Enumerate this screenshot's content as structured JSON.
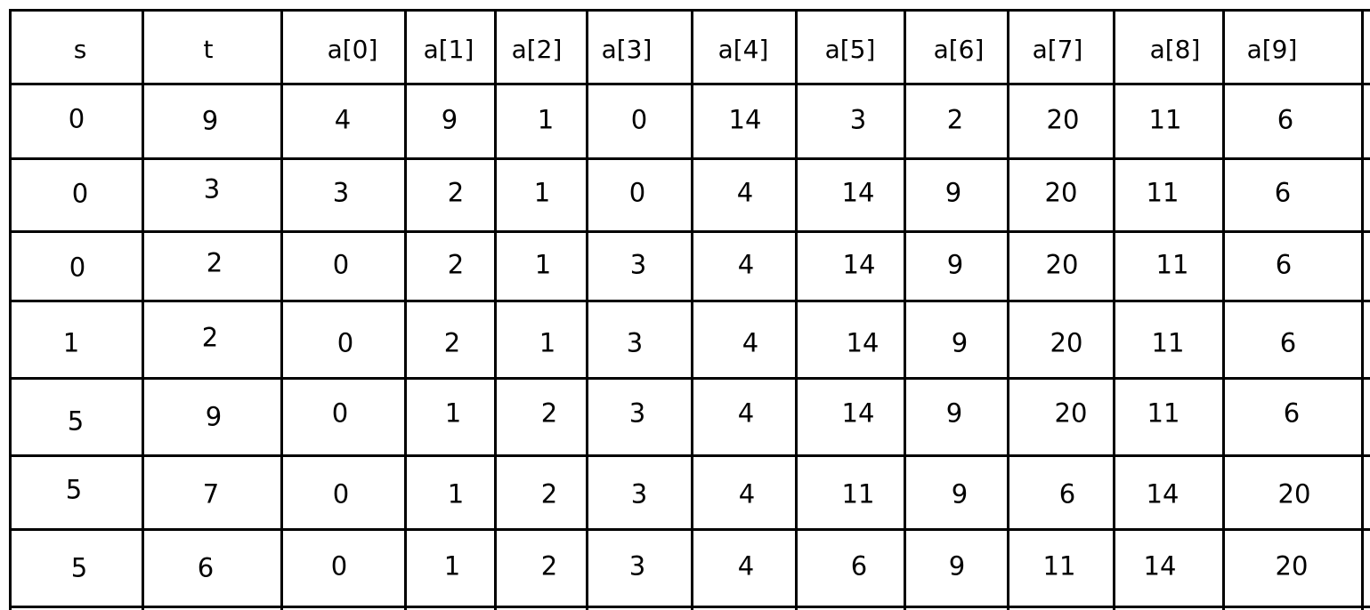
{
  "table": {
    "columns": [
      "s",
      "t",
      "a[0]",
      "a[1]",
      "a[2]",
      "a[3]",
      "a[4]",
      "a[5]",
      "a[6]",
      "a[7]",
      "a[8]",
      "a[9]"
    ],
    "rows": [
      [
        "0",
        "9",
        "4",
        "9",
        "1",
        "0",
        "14",
        "3",
        "2",
        "20",
        "11",
        "6"
      ],
      [
        "0",
        "3",
        "3",
        "2",
        "1",
        "0",
        "4",
        "14",
        "9",
        "20",
        "11",
        "6"
      ],
      [
        "0",
        "2",
        "0",
        "2",
        "1",
        "3",
        "4",
        "14",
        "9",
        "20",
        "11",
        "6"
      ],
      [
        "1",
        "2",
        "0",
        "2",
        "1",
        "3",
        "4",
        "14",
        "9",
        "20",
        "11",
        "6"
      ],
      [
        "5",
        "9",
        "0",
        "1",
        "2",
        "3",
        "4",
        "14",
        "9",
        "20",
        "11",
        "6"
      ],
      [
        "5",
        "7",
        "0",
        "1",
        "2",
        "3",
        "4",
        "11",
        "9",
        "6",
        "14",
        "20"
      ],
      [
        "5",
        "6",
        "0",
        "1",
        "2",
        "3",
        "4",
        "6",
        "9",
        "11",
        "14",
        "20"
      ]
    ]
  }
}
